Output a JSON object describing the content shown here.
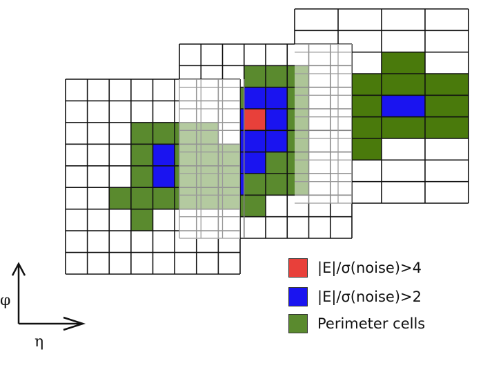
{
  "colors": {
    "high": "#e8403a",
    "medium": "#1a14f0",
    "perimeter": "#5a8a2e",
    "perimeter_back": "#4a7a0c",
    "grid_line": "#111111"
  },
  "legend": [
    {
      "label": "|E|/σ(noise)>4",
      "color": "#e8403a"
    },
    {
      "label": "|E|/σ(noise)>2",
      "color": "#1a14f0"
    },
    {
      "label": "Perimeter cells",
      "color": "#5a8a2e"
    }
  ],
  "axes": {
    "vertical_label": "φ",
    "horizontal_label": "η"
  },
  "layers": [
    {
      "name": "back-layer",
      "cols": 4,
      "rows": 9,
      "cells": [
        {
          "r": 2,
          "c": 2,
          "t": "p"
        },
        {
          "r": 3,
          "c": 0,
          "t": "p"
        },
        {
          "r": 3,
          "c": 1,
          "t": "p"
        },
        {
          "r": 3,
          "c": 2,
          "t": "p"
        },
        {
          "r": 3,
          "c": 3,
          "t": "p"
        },
        {
          "r": 4,
          "c": 0,
          "t": "p"
        },
        {
          "r": 4,
          "c": 1,
          "t": "p"
        },
        {
          "r": 4,
          "c": 2,
          "t": "m"
        },
        {
          "r": 4,
          "c": 3,
          "t": "p"
        },
        {
          "r": 5,
          "c": 0,
          "t": "p"
        },
        {
          "r": 5,
          "c": 1,
          "t": "p"
        },
        {
          "r": 5,
          "c": 2,
          "t": "p"
        },
        {
          "r": 5,
          "c": 3,
          "t": "p"
        },
        {
          "r": 6,
          "c": 0,
          "t": "p"
        },
        {
          "r": 6,
          "c": 1,
          "t": "p"
        }
      ]
    },
    {
      "name": "middle-layer",
      "cols": 8,
      "rows": 9,
      "cells": [
        {
          "r": 1,
          "c": 3,
          "t": "p"
        },
        {
          "r": 1,
          "c": 4,
          "t": "p"
        },
        {
          "r": 1,
          "c": 5,
          "t": "p"
        },
        {
          "r": 2,
          "c": 2,
          "t": "p"
        },
        {
          "r": 2,
          "c": 3,
          "t": "m"
        },
        {
          "r": 2,
          "c": 4,
          "t": "m"
        },
        {
          "r": 2,
          "c": 5,
          "t": "p"
        },
        {
          "r": 3,
          "c": 2,
          "t": "m"
        },
        {
          "r": 3,
          "c": 3,
          "t": "h"
        },
        {
          "r": 3,
          "c": 4,
          "t": "m"
        },
        {
          "r": 3,
          "c": 5,
          "t": "p"
        },
        {
          "r": 4,
          "c": 2,
          "t": "m"
        },
        {
          "r": 4,
          "c": 3,
          "t": "m"
        },
        {
          "r": 4,
          "c": 4,
          "t": "m"
        },
        {
          "r": 4,
          "c": 5,
          "t": "p"
        },
        {
          "r": 5,
          "c": 1,
          "t": "p"
        },
        {
          "r": 5,
          "c": 2,
          "t": "m"
        },
        {
          "r": 5,
          "c": 3,
          "t": "m"
        },
        {
          "r": 5,
          "c": 4,
          "t": "p"
        },
        {
          "r": 5,
          "c": 5,
          "t": "p"
        },
        {
          "r": 6,
          "c": 1,
          "t": "p"
        },
        {
          "r": 6,
          "c": 2,
          "t": "m"
        },
        {
          "r": 6,
          "c": 3,
          "t": "p"
        },
        {
          "r": 6,
          "c": 4,
          "t": "p"
        },
        {
          "r": 6,
          "c": 5,
          "t": "p"
        },
        {
          "r": 7,
          "c": 2,
          "t": "p"
        },
        {
          "r": 7,
          "c": 3,
          "t": "p"
        }
      ]
    },
    {
      "name": "front-layer",
      "cols": 8,
      "rows": 9,
      "cells": [
        {
          "r": 2,
          "c": 3,
          "t": "p"
        },
        {
          "r": 2,
          "c": 4,
          "t": "p"
        },
        {
          "r": 2,
          "c": 5,
          "t": "p"
        },
        {
          "r": 2,
          "c": 6,
          "t": "p"
        },
        {
          "r": 3,
          "c": 3,
          "t": "p"
        },
        {
          "r": 3,
          "c": 4,
          "t": "m"
        },
        {
          "r": 3,
          "c": 5,
          "t": "p"
        },
        {
          "r": 3,
          "c": 6,
          "t": "p"
        },
        {
          "r": 3,
          "c": 7,
          "t": "p"
        },
        {
          "r": 4,
          "c": 3,
          "t": "p"
        },
        {
          "r": 4,
          "c": 4,
          "t": "m"
        },
        {
          "r": 4,
          "c": 5,
          "t": "p"
        },
        {
          "r": 4,
          "c": 6,
          "t": "p"
        },
        {
          "r": 4,
          "c": 7,
          "t": "p"
        },
        {
          "r": 5,
          "c": 2,
          "t": "p"
        },
        {
          "r": 5,
          "c": 3,
          "t": "p"
        },
        {
          "r": 5,
          "c": 4,
          "t": "p"
        },
        {
          "r": 5,
          "c": 5,
          "t": "p"
        },
        {
          "r": 5,
          "c": 6,
          "t": "p"
        },
        {
          "r": 5,
          "c": 7,
          "t": "p"
        },
        {
          "r": 6,
          "c": 3,
          "t": "p"
        }
      ]
    }
  ]
}
